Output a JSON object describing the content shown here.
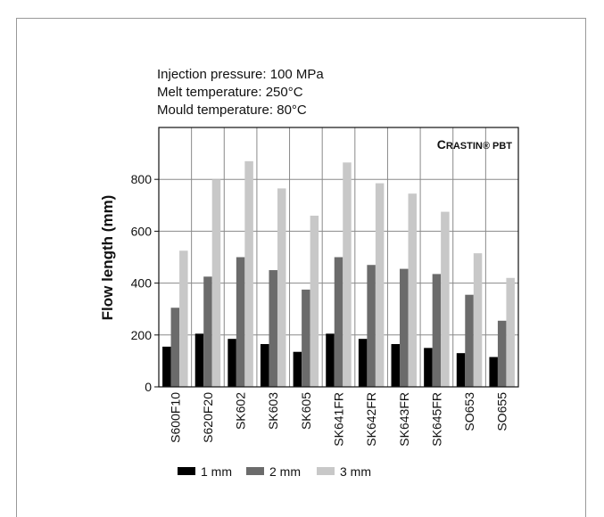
{
  "conditions": [
    "Injection pressure: 100 MPa",
    "Melt temperature: 250°C",
    "Mould temperature: 80°C"
  ],
  "brand": {
    "initial": "C",
    "rest": "RASTIN® PBT"
  },
  "colors": {
    "1mm": "#000000",
    "2mm": "#6b6b6b",
    "3mm": "#c8c8c8",
    "grid": "#8a8a8a"
  },
  "chart_data": {
    "type": "bar",
    "title": "",
    "xlabel": "",
    "ylabel": "Flow length (mm)",
    "ylim": [
      0,
      1000
    ],
    "yticks": [
      0,
      200,
      400,
      600,
      800
    ],
    "grid": true,
    "legend_position": "bottom",
    "categories": [
      "S600F10",
      "S620F20",
      "SK602",
      "SK603",
      "SK605",
      "SK641FR",
      "SK642FR",
      "SK643FR",
      "SK645FR",
      "SO653",
      "SO655"
    ],
    "series": [
      {
        "name": "1 mm",
        "values": [
          155,
          205,
          185,
          165,
          135,
          205,
          185,
          165,
          150,
          130,
          115
        ]
      },
      {
        "name": "2 mm",
        "values": [
          305,
          425,
          500,
          450,
          375,
          500,
          470,
          455,
          435,
          355,
          255
        ]
      },
      {
        "name": "3 mm",
        "values": [
          525,
          800,
          870,
          765,
          660,
          865,
          785,
          745,
          675,
          515,
          420
        ]
      }
    ]
  }
}
